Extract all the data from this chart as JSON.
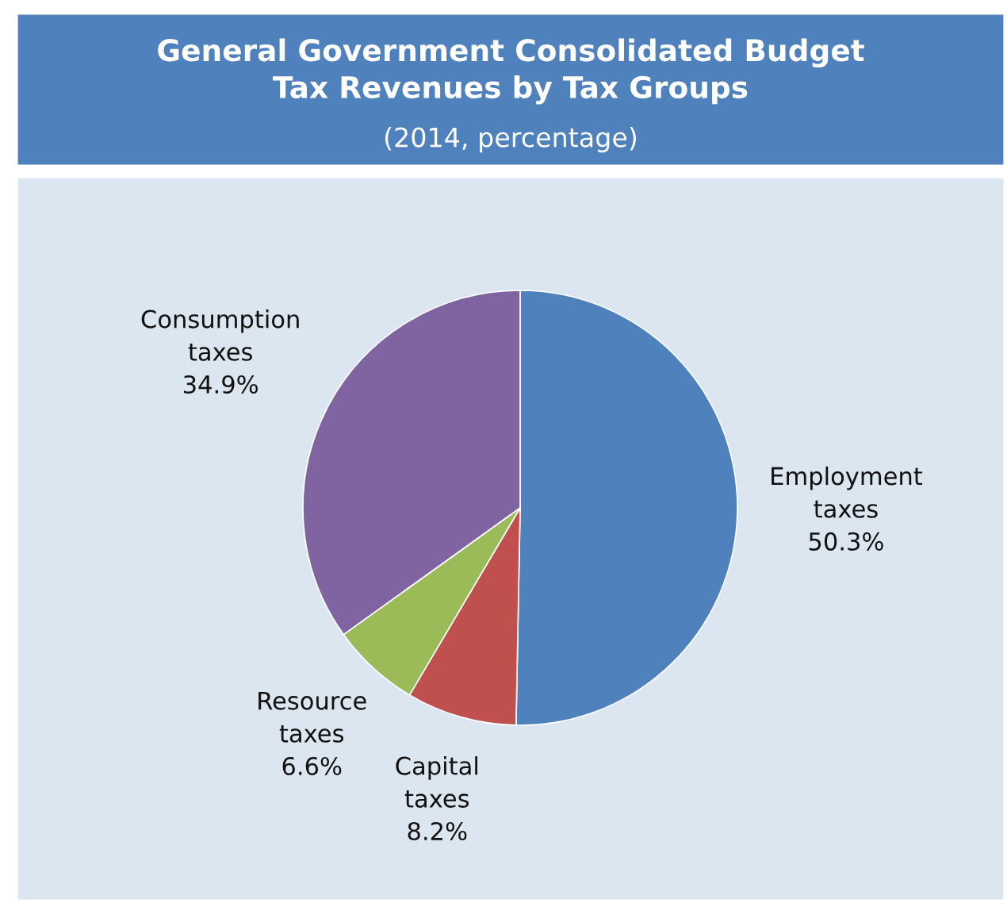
{
  "chart_data": {
    "type": "pie",
    "title": "General Government Consolidated Budget\nTax Revenues by Tax Groups",
    "subtitle": "(2014, percentage)",
    "categories": [
      "Employment taxes",
      "Capital taxes",
      "Resource taxes",
      "Consumption taxes"
    ],
    "values": [
      50.3,
      8.2,
      6.6,
      34.9
    ],
    "value_labels": [
      "50.3%",
      "8.2%",
      "6.6%",
      "34.9%"
    ],
    "colors": [
      "#4f81bd",
      "#c0504d",
      "#9bbb59",
      "#8064a2"
    ],
    "legend": false
  }
}
